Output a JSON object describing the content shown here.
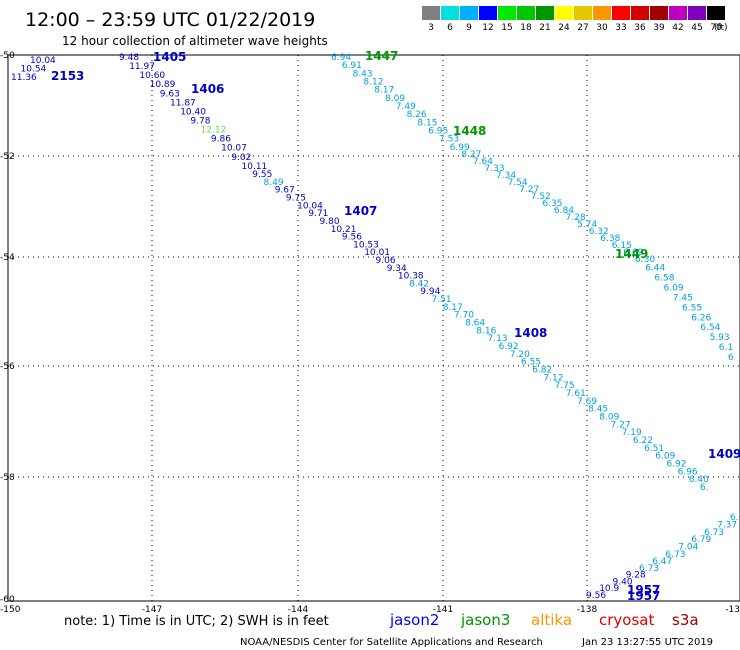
{
  "header": {
    "title": "12:00 – 23:59 UTC 01/22/2019",
    "subtitle": "12 hour collection of altimeter wave heights"
  },
  "legend": {
    "unit": "(ft)",
    "bins": [
      {
        "label": "3",
        "color": "#808080"
      },
      {
        "label": "6",
        "color": "#00e0e0"
      },
      {
        "label": "9",
        "color": "#00b0ff"
      },
      {
        "label": "12",
        "color": "#0000ff"
      },
      {
        "label": "15",
        "color": "#00e800"
      },
      {
        "label": "18",
        "color": "#00c800"
      },
      {
        "label": "21",
        "color": "#009600"
      },
      {
        "label": "24",
        "color": "#ffff00"
      },
      {
        "label": "27",
        "color": "#e6c800"
      },
      {
        "label": "30",
        "color": "#ff9600"
      },
      {
        "label": "33",
        "color": "#ff0000"
      },
      {
        "label": "36",
        "color": "#d20000"
      },
      {
        "label": "39",
        "color": "#a00000"
      },
      {
        "label": "42",
        "color": "#c000c0"
      },
      {
        "label": "45",
        "color": "#8000c0"
      },
      {
        "label": "70",
        "color": "#000000"
      }
    ]
  },
  "axes": {
    "lon_ticks": [
      "-150",
      "-147",
      "-144",
      "-141",
      "-138",
      "-13"
    ],
    "lat_ticks": [
      "-50",
      "-52",
      "-54",
      "-56",
      "-58",
      "-60"
    ]
  },
  "tracks": {
    "jason2_a": [
      {
        "v": "10.04",
        "c": "#0000c8"
      },
      {
        "v": "10.54",
        "c": "#0000c8"
      },
      {
        "v": "11.36",
        "c": "#0000c8"
      }
    ],
    "jason2_b": [
      {
        "v": "9.48",
        "c": "#0000c8"
      },
      {
        "v": "11.97",
        "c": "#0000c8"
      },
      {
        "v": "10.60",
        "c": "#0000c8"
      },
      {
        "v": "10.89",
        "c": "#0000c8"
      },
      {
        "v": "9.63",
        "c": "#0000c8"
      },
      {
        "v": "11.87",
        "c": "#0000c8"
      },
      {
        "v": "10.40",
        "c": "#0000c8"
      },
      {
        "v": "9.78",
        "c": "#0000c8"
      },
      {
        "v": "12.12",
        "c": "#66dd44"
      },
      {
        "v": "9.86",
        "c": "#0000c8"
      },
      {
        "v": "10.07",
        "c": "#0000c8"
      },
      {
        "v": "9.02",
        "c": "#0000c8"
      },
      {
        "v": "10.11",
        "c": "#0000c8"
      },
      {
        "v": "9.55",
        "c": "#0000c8"
      },
      {
        "v": "8.49",
        "c": "#00a0e0"
      },
      {
        "v": "9.67",
        "c": "#0000c8"
      },
      {
        "v": "9.75",
        "c": "#0000c8"
      },
      {
        "v": "10.04",
        "c": "#0000c8"
      },
      {
        "v": "9.71",
        "c": "#0000c8"
      },
      {
        "v": "9.80",
        "c": "#0000c8"
      },
      {
        "v": "10.21",
        "c": "#0000c8"
      },
      {
        "v": "9.56",
        "c": "#0000c8"
      },
      {
        "v": "10.53",
        "c": "#0000c8"
      },
      {
        "v": "10.01",
        "c": "#0000c8"
      },
      {
        "v": "9.06",
        "c": "#0000c8"
      },
      {
        "v": "9.34",
        "c": "#0000c8"
      },
      {
        "v": "10.38",
        "c": "#0000c8"
      },
      {
        "v": "8.42",
        "c": "#00a0e0"
      },
      {
        "v": "9.94",
        "c": "#0000c8"
      },
      {
        "v": "7.51",
        "c": "#00a0e0"
      },
      {
        "v": "8.17",
        "c": "#00a0e0"
      },
      {
        "v": "7.70",
        "c": "#00a0e0"
      },
      {
        "v": "8.64",
        "c": "#00a0e0"
      },
      {
        "v": "8.16",
        "c": "#00a0e0"
      },
      {
        "v": "7.13",
        "c": "#00a0e0"
      },
      {
        "v": "6.92",
        "c": "#00a0e0"
      },
      {
        "v": "7.20",
        "c": "#00a0e0"
      },
      {
        "v": "6.55",
        "c": "#00a0e0"
      },
      {
        "v": "6.82",
        "c": "#00a0e0"
      },
      {
        "v": "7.12",
        "c": "#00a0e0"
      },
      {
        "v": "7.75",
        "c": "#00a0e0"
      },
      {
        "v": "7.61",
        "c": "#00a0e0"
      },
      {
        "v": "7.69",
        "c": "#00a0e0"
      },
      {
        "v": "8.45",
        "c": "#00a0e0"
      },
      {
        "v": "8.09",
        "c": "#00a0e0"
      },
      {
        "v": "7.27",
        "c": "#00a0e0"
      },
      {
        "v": "7.19",
        "c": "#00a0e0"
      },
      {
        "v": "6.22",
        "c": "#00a0e0"
      },
      {
        "v": "6.51",
        "c": "#00a0e0"
      },
      {
        "v": "6.09",
        "c": "#00a0e0"
      },
      {
        "v": "6.92",
        "c": "#00a0e0"
      },
      {
        "v": "6.96",
        "c": "#00a0e0"
      },
      {
        "v": "6.40",
        "c": "#00a0e0"
      },
      {
        "v": "6.",
        "c": "#00a0e0"
      }
    ],
    "jason3": [
      {
        "v": "6.94",
        "c": "#00a0e0"
      },
      {
        "v": "6.91",
        "c": "#00a0e0"
      },
      {
        "v": "8.43",
        "c": "#00a0e0"
      },
      {
        "v": "8.12",
        "c": "#00a0e0"
      },
      {
        "v": "8.17",
        "c": "#00a0e0"
      },
      {
        "v": "8.09",
        "c": "#00a0e0"
      },
      {
        "v": "7.49",
        "c": "#00a0e0"
      },
      {
        "v": "8.26",
        "c": "#00a0e0"
      },
      {
        "v": "8.15",
        "c": "#00a0e0"
      },
      {
        "v": "6.95",
        "c": "#00a0e0"
      },
      {
        "v": "7.53",
        "c": "#00a0e0"
      },
      {
        "v": "6.99",
        "c": "#00a0e0"
      },
      {
        "v": "8.27",
        "c": "#00a0e0"
      },
      {
        "v": "7.64",
        "c": "#00a0e0"
      },
      {
        "v": "7.33",
        "c": "#00a0e0"
      },
      {
        "v": "7.34",
        "c": "#00a0e0"
      },
      {
        "v": "7.54",
        "c": "#00a0e0"
      },
      {
        "v": "7.27",
        "c": "#00a0e0"
      },
      {
        "v": "7.52",
        "c": "#00a0e0"
      },
      {
        "v": "6.35",
        "c": "#00a0e0"
      },
      {
        "v": "6.84",
        "c": "#00a0e0"
      },
      {
        "v": "7.28",
        "c": "#00a0e0"
      },
      {
        "v": "5.74",
        "c": "#00a0e0"
      },
      {
        "v": "6.32",
        "c": "#00a0e0"
      },
      {
        "v": "6.38",
        "c": "#00a0e0"
      },
      {
        "v": "6.15",
        "c": "#00a0e0"
      },
      {
        "v": "6.69",
        "c": "#00a0e0"
      },
      {
        "v": "6.30",
        "c": "#00a0e0"
      },
      {
        "v": "6.44",
        "c": "#00a0e0"
      },
      {
        "v": "6.58",
        "c": "#00a0e0"
      },
      {
        "v": "6.09",
        "c": "#00a0e0"
      },
      {
        "v": "7.45",
        "c": "#00a0e0"
      },
      {
        "v": "6.55",
        "c": "#00a0e0"
      },
      {
        "v": "6.26",
        "c": "#00a0e0"
      },
      {
        "v": "6.54",
        "c": "#00a0e0"
      },
      {
        "v": "5.93",
        "c": "#00a0e0"
      },
      {
        "v": "6.1",
        "c": "#00a0e0"
      },
      {
        "v": "6",
        "c": "#00a0e0"
      }
    ],
    "bottom": [
      {
        "v": "9.56",
        "c": "#0000c8"
      },
      {
        "v": "10.9",
        "c": "#0000c8"
      },
      {
        "v": "9.40",
        "c": "#0000c8"
      },
      {
        "v": "9.28",
        "c": "#0000c8"
      },
      {
        "v": "6.73",
        "c": "#00a0e0"
      },
      {
        "v": "6.47",
        "c": "#00a0e0"
      },
      {
        "v": "6.73",
        "c": "#00a0e0"
      },
      {
        "v": "7.04",
        "c": "#00a0e0"
      },
      {
        "v": "6.79",
        "c": "#00a0e0"
      },
      {
        "v": "6.73",
        "c": "#00a0e0"
      },
      {
        "v": "7.37",
        "c": "#00a0e0"
      },
      {
        "v": "6.76",
        "c": "#00a0e0"
      }
    ]
  },
  "time_labels": [
    {
      "t": "2153",
      "c": "#0000c8"
    },
    {
      "t": "1405",
      "c": "#0000c8"
    },
    {
      "t": "1406",
      "c": "#0000c8"
    },
    {
      "t": "1407",
      "c": "#0000c8"
    },
    {
      "t": "1408",
      "c": "#0000c8"
    },
    {
      "t": "1409",
      "c": "#0000c8"
    },
    {
      "t": "1447",
      "c": "#009600"
    },
    {
      "t": "1448",
      "c": "#009600"
    },
    {
      "t": "1449",
      "c": "#009600"
    },
    {
      "t": "1957",
      "c": "#0000c8"
    },
    {
      "t": "1957",
      "c": "#0000c8"
    }
  ],
  "footer": {
    "note": "note:  1) Time is in UTC;  2) SWH is in feet",
    "satellites": [
      {
        "name": "jason2",
        "color": "#0000ff"
      },
      {
        "name": "jason3",
        "color": "#009600"
      },
      {
        "name": "altika",
        "color": "#ff9600"
      },
      {
        "name": "cryosat",
        "color": "#e00000"
      },
      {
        "name": "s3a",
        "color": "#a00000"
      }
    ],
    "credit": "NOAA/NESDIS Center for Satellite Applications and Research",
    "timestamp": "Jan 23 13:27:55 UTC 2019"
  }
}
